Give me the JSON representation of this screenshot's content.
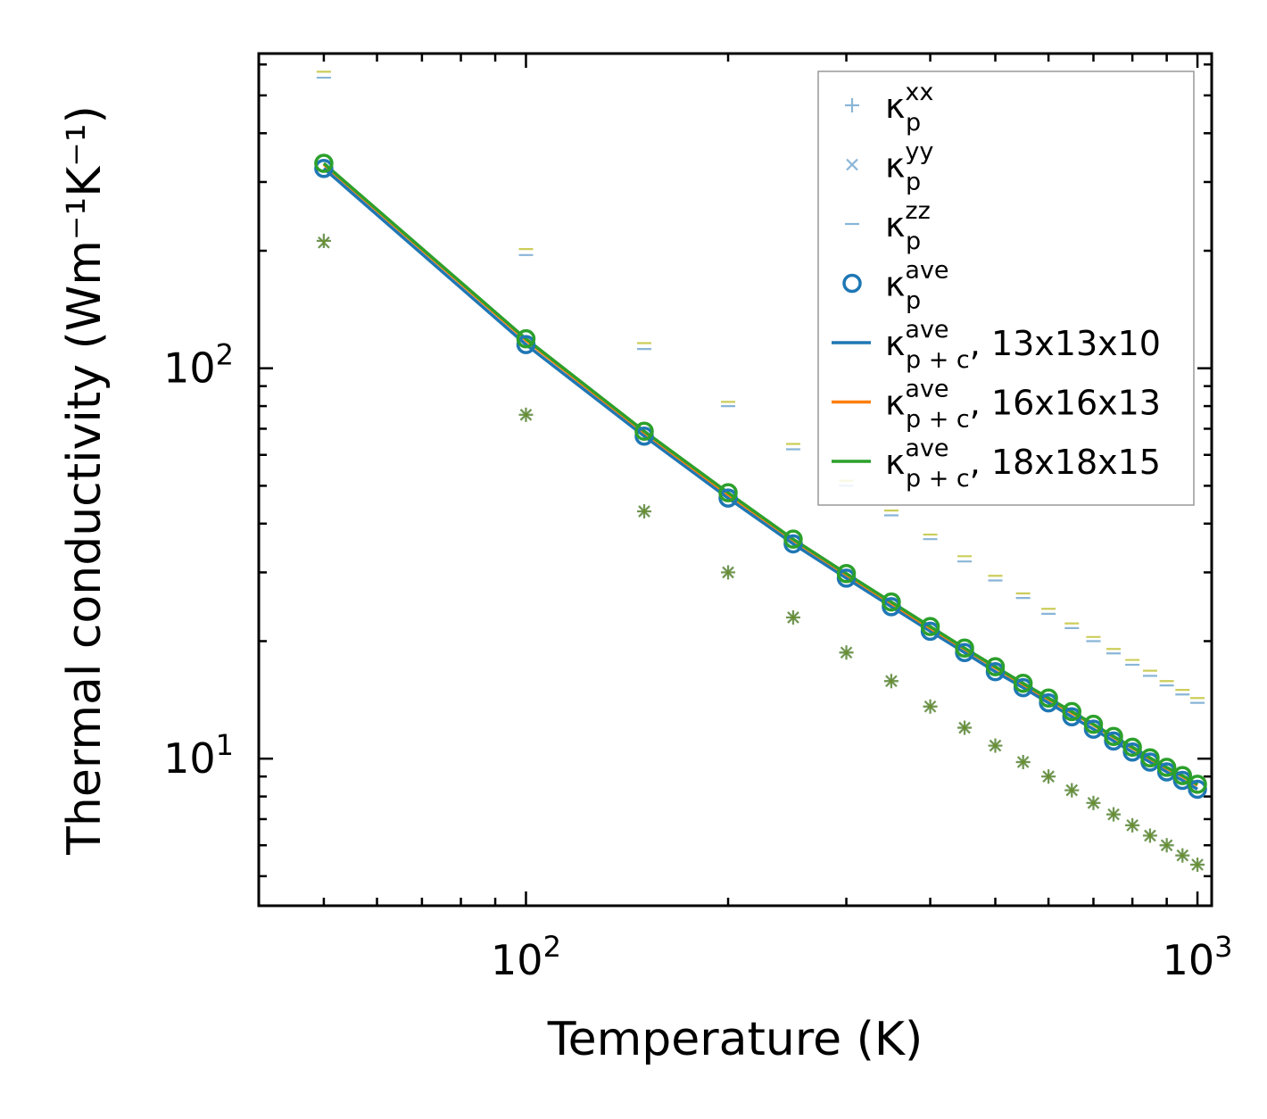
{
  "chart_data": {
    "type": "scatter",
    "title": "",
    "xlabel": "Temperature (K)",
    "ylabel": "Thermal conductivity (Wm⁻¹K⁻¹)",
    "xscale": "log",
    "yscale": "log",
    "xlim": [
      40,
      1050
    ],
    "ylim": [
      4.2,
      640
    ],
    "xticks": [
      {
        "value": 100,
        "base": "10",
        "exp": "2"
      },
      {
        "value": 1000,
        "base": "10",
        "exp": "3"
      }
    ],
    "yticks": [
      {
        "value": 10,
        "base": "10",
        "exp": "1"
      },
      {
        "value": 100,
        "base": "10",
        "exp": "2"
      }
    ],
    "legend_position": "top-right",
    "x": [
      50,
      100,
      150,
      200,
      250,
      300,
      350,
      400,
      450,
      500,
      550,
      600,
      650,
      700,
      750,
      800,
      850,
      900,
      950,
      1000
    ],
    "series": [
      {
        "name": "xx",
        "label_base": "κ",
        "label_sub": "p",
        "label_sup": "xx",
        "label_suffix": "",
        "marker": "plus",
        "color": "#2a7ab8",
        "opacity": 0.55,
        "values": [
          212,
          76,
          43,
          30,
          23,
          18.7,
          15.8,
          13.6,
          12.0,
          10.8,
          9.8,
          9.0,
          8.3,
          7.7,
          7.2,
          6.75,
          6.35,
          6.0,
          5.65,
          5.35
        ]
      },
      {
        "name": "yy",
        "label_base": "κ",
        "label_sub": "p",
        "label_sup": "yy",
        "label_suffix": "",
        "marker": "x",
        "color": "#2a7ab8",
        "opacity": 0.55,
        "values": [
          210,
          76,
          43,
          30,
          23,
          18.7,
          15.8,
          13.6,
          12.0,
          10.8,
          9.8,
          9.0,
          8.3,
          7.7,
          7.2,
          6.75,
          6.35,
          6.0,
          5.65,
          5.35
        ]
      },
      {
        "name": "zz",
        "label_base": "κ",
        "label_sub": "p",
        "label_sup": "zz",
        "label_suffix": "",
        "marker": "hline",
        "color": "#2a7ab8",
        "opacity": 0.55,
        "values": [
          555,
          195,
          112,
          80,
          62,
          50,
          42,
          36.5,
          32,
          28.6,
          25.8,
          23.5,
          21.6,
          20.0,
          18.6,
          17.4,
          16.3,
          15.4,
          14.6,
          13.9
        ]
      },
      {
        "name": "ave",
        "label_base": "κ",
        "label_sub": "p",
        "label_sup": "ave",
        "label_suffix": "",
        "marker": "circle",
        "color": "#1f77b4",
        "opacity": 1,
        "values": [
          325,
          115,
          67,
          46.5,
          35.5,
          29,
          24.5,
          21.2,
          18.7,
          16.7,
          15.2,
          13.9,
          12.8,
          11.9,
          11.1,
          10.4,
          9.8,
          9.25,
          8.8,
          8.35
        ]
      },
      {
        "name": "13x13x10",
        "label_base": "κ",
        "label_sub": "p + c",
        "label_sup": "ave",
        "label_suffix": ", 13x13x10",
        "marker": "line",
        "color": "#1f77b4",
        "opacity": 1,
        "values": [
          325,
          115,
          67,
          46.5,
          35.5,
          29,
          24.5,
          21.2,
          18.7,
          16.7,
          15.2,
          13.9,
          12.8,
          11.9,
          11.1,
          10.4,
          9.8,
          9.25,
          8.8,
          8.35
        ]
      },
      {
        "name": "16x16x13",
        "label_base": "κ",
        "label_sub": "p + c",
        "label_sup": "ave",
        "label_suffix": ", 16x16x13",
        "marker": "line",
        "color": "#ff7f0e",
        "opacity": 1,
        "values": [
          333,
          118,
          68.5,
          47.5,
          36.3,
          29.6,
          25.0,
          21.6,
          19.1,
          17.1,
          15.5,
          14.2,
          13.1,
          12.2,
          11.35,
          10.65,
          10.0,
          9.45,
          9.0,
          8.55
        ]
      },
      {
        "name": "18x18x15",
        "label_base": "κ",
        "label_sub": "p + c",
        "label_sup": "ave",
        "label_suffix": ", 18x18x15",
        "marker": "line",
        "color": "#2ca02c",
        "opacity": 1,
        "values": [
          335,
          119,
          69,
          48,
          36.5,
          29.8,
          25.2,
          21.8,
          19.2,
          17.2,
          15.6,
          14.3,
          13.2,
          12.25,
          11.4,
          10.7,
          10.05,
          9.5,
          9.05,
          8.6
        ]
      }
    ],
    "overlay_markers": [
      {
        "name": "xx-18",
        "marker": "plus",
        "color": "#6b8e23",
        "opacity": 0.75,
        "values": [
          212,
          76,
          43,
          30,
          23,
          18.7,
          15.8,
          13.6,
          12.0,
          10.8,
          9.8,
          9.0,
          8.3,
          7.7,
          7.2,
          6.75,
          6.35,
          6.0,
          5.65,
          5.35
        ]
      },
      {
        "name": "yy-18",
        "marker": "x",
        "color": "#6b8e23",
        "opacity": 0.75,
        "values": [
          210,
          76,
          43,
          30,
          23,
          18.7,
          15.8,
          13.6,
          12.0,
          10.8,
          9.8,
          9.0,
          8.3,
          7.7,
          7.2,
          6.75,
          6.35,
          6.0,
          5.65,
          5.35
        ]
      },
      {
        "name": "zz-18",
        "marker": "hline-offset",
        "color": "#bcbd22",
        "opacity": 0.75,
        "values": [
          575,
          202,
          116,
          82,
          64,
          51.5,
          43.2,
          37.5,
          33,
          29.4,
          26.5,
          24.2,
          22.2,
          20.5,
          19.1,
          17.9,
          16.8,
          15.8,
          15.0,
          14.3
        ]
      },
      {
        "name": "ave-18",
        "marker": "circle",
        "color": "#2ca02c",
        "opacity": 1,
        "values": [
          335,
          119,
          69,
          48,
          36.5,
          29.8,
          25.2,
          21.8,
          19.2,
          17.2,
          15.6,
          14.3,
          13.2,
          12.25,
          11.4,
          10.7,
          10.05,
          9.5,
          9.05,
          8.6
        ]
      }
    ]
  }
}
